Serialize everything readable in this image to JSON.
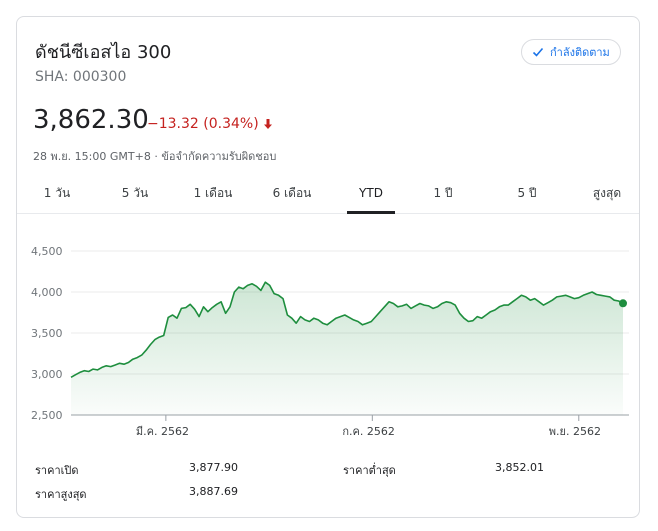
{
  "header": {
    "title": "ดัชนีซีเอสไอ 300",
    "ticker": "SHA: 000300",
    "follow_label": "กำลังติดตาม"
  },
  "quote": {
    "price": "3,862.30",
    "change": "−13.32 (0.34%)",
    "meta": "28 พ.ย. 15:00 GMT+8 · ข้อจำกัดความรับผิดชอบ"
  },
  "tabs": [
    {
      "label": "1 วัน"
    },
    {
      "label": "5 วัน"
    },
    {
      "label": "1 เดือน"
    },
    {
      "label": "6 เดือน"
    },
    {
      "label": "YTD"
    },
    {
      "label": "1 ปี"
    },
    {
      "label": "5 ปี"
    },
    {
      "label": "สูงสุด"
    }
  ],
  "active_tab": "YTD",
  "colors": {
    "line": "#1e8e3e",
    "negative": "#c5221f",
    "accent": "#1a73e8"
  },
  "stats": {
    "open_label": "ราคาเปิด",
    "open_value": "3,877.90",
    "low_label": "ราคาต่ำสุด",
    "low_value": "3,852.01",
    "high_label": "ราคาสูงสุด",
    "high_value": "3,887.69"
  },
  "chart_data": {
    "type": "area",
    "y_ticks": [
      "4,500",
      "4,000",
      "3,500",
      "3,000",
      "2,500"
    ],
    "y_tick_values": [
      4500,
      4000,
      3500,
      3000,
      2500
    ],
    "ylim": [
      2500,
      4500
    ],
    "x_ticks": [
      "มี.ค. 2562",
      "ก.ค. 2562",
      "พ.ย. 2562"
    ],
    "x_tick_index": [
      0.17,
      0.54,
      0.91
    ],
    "grid": true,
    "values": [
      2960,
      2990,
      3020,
      3040,
      3030,
      3060,
      3050,
      3080,
      3100,
      3090,
      3110,
      3130,
      3120,
      3140,
      3180,
      3200,
      3230,
      3290,
      3360,
      3420,
      3450,
      3470,
      3690,
      3720,
      3680,
      3800,
      3810,
      3850,
      3790,
      3700,
      3820,
      3760,
      3810,
      3850,
      3880,
      3740,
      3820,
      4000,
      4060,
      4040,
      4080,
      4100,
      4070,
      4020,
      4120,
      4080,
      3980,
      3960,
      3920,
      3720,
      3680,
      3620,
      3700,
      3660,
      3640,
      3680,
      3660,
      3620,
      3600,
      3640,
      3680,
      3700,
      3720,
      3690,
      3660,
      3640,
      3600,
      3620,
      3640,
      3700,
      3760,
      3820,
      3880,
      3860,
      3820,
      3830,
      3850,
      3800,
      3830,
      3860,
      3840,
      3830,
      3800,
      3820,
      3860,
      3880,
      3870,
      3840,
      3740,
      3680,
      3640,
      3650,
      3700,
      3680,
      3720,
      3760,
      3780,
      3820,
      3840,
      3840,
      3880,
      3920,
      3960,
      3940,
      3900,
      3920,
      3880,
      3840,
      3870,
      3900,
      3940,
      3950,
      3960,
      3940,
      3920,
      3930,
      3960,
      3980,
      4000,
      3970,
      3960,
      3950,
      3940,
      3900,
      3890,
      3862.3
    ]
  }
}
